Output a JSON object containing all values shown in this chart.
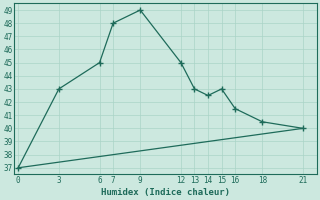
{
  "xlabel": "Humidex (Indice chaleur)",
  "line1_x": [
    0,
    3,
    6,
    7,
    9,
    12,
    13,
    14,
    15,
    16,
    18,
    21
  ],
  "line1_y": [
    37,
    43,
    45,
    48,
    49,
    45,
    43,
    42.5,
    43,
    41.5,
    40.5,
    40
  ],
  "line2_x": [
    0,
    21
  ],
  "line2_y": [
    37.0,
    40.0
  ],
  "line_color": "#1e6b5a",
  "bg_color": "#cce8df",
  "grid_color": "#aad4c8",
  "ylim": [
    36.5,
    49.5
  ],
  "xlim": [
    -0.3,
    22
  ],
  "yticks": [
    37,
    38,
    39,
    40,
    41,
    42,
    43,
    44,
    45,
    46,
    47,
    48,
    49
  ],
  "xticks": [
    0,
    3,
    6,
    7,
    9,
    12,
    13,
    14,
    15,
    16,
    18,
    21
  ],
  "marker_indices": [
    0,
    3,
    6,
    7,
    9,
    12,
    13,
    14,
    15,
    16,
    18,
    21
  ]
}
